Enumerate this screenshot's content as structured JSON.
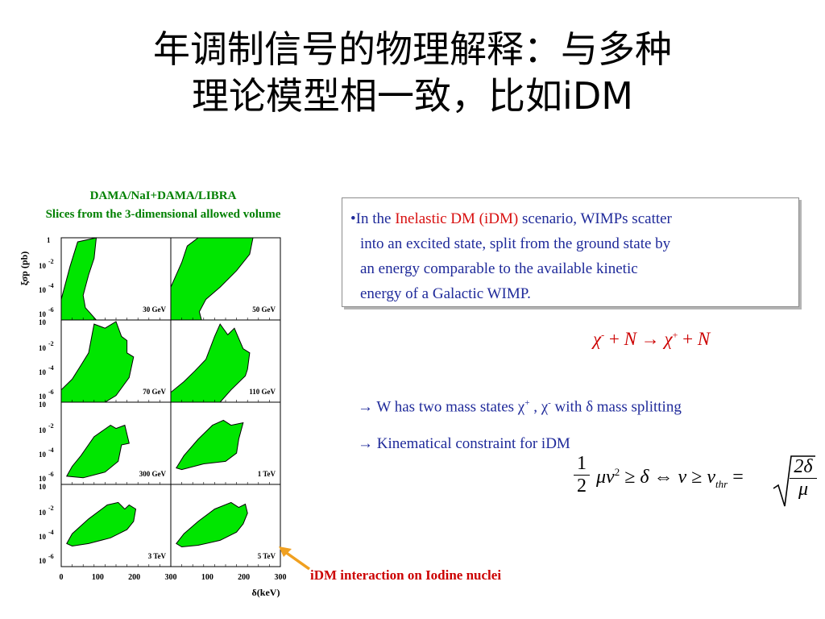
{
  "slide": {
    "title_line1": "年调制信号的物理解释：与多种",
    "title_line2": "理论模型相一致，比如iDM"
  },
  "figure": {
    "caption_line1": "DAMA/NaI+DAMA/LIBRA",
    "caption_line2": "Slices from the 3-dimensional allowed volume",
    "bottom_caption": "iDM interaction on Iodine nuclei",
    "region_color": "#00e600",
    "arrow_color": "#f0a020"
  },
  "chart_data": {
    "type": "area",
    "ylabel": "ξσp (pb)",
    "xlabel": "δ(keV)",
    "x_ticks": [
      "0",
      "100",
      "200",
      "300"
    ],
    "y_ticks": [
      "1",
      "-2",
      "-4",
      "-6"
    ],
    "y_tick_prefix": "10",
    "panels": [
      {
        "label": "30 GeV"
      },
      {
        "label": "50 GeV"
      },
      {
        "label": "70 GeV"
      },
      {
        "label": "110 GeV"
      },
      {
        "label": "300 GeV"
      },
      {
        "label": "1 TeV"
      },
      {
        "label": "3 TeV"
      },
      {
        "label": "5 TeV"
      }
    ]
  },
  "text_box": {
    "bullet": "•",
    "pre": "In the ",
    "highlight": "Inelastic DM (iDM)",
    "post": " scenario, WIMPs scatter",
    "line2": "into an excited state, split from the ground state by",
    "line3": "an energy comparable to the available kinetic",
    "line4": "energy of a Galactic WIMP."
  },
  "equation1": {
    "chi": "χ",
    "minus": "-",
    "plus_sign": "+",
    "N": "N",
    "arrow": "→"
  },
  "bullets": {
    "arrow": "→",
    "b1_pre": " W has two mass states χ",
    "b1_plus": "+",
    "b1_mid": " , χ",
    "b1_minus": "-",
    "b1_post": " with δ mass splitting",
    "b2": " Kinematical constraint for iDM"
  },
  "equation2": {
    "half_num": "1",
    "half_den": "2",
    "lhs": "μv",
    "sq": "2",
    "rel": " ≥ δ ⇔ v ≥ v",
    "thr": "thr",
    "eq": " =",
    "sqrt_num": "2δ",
    "sqrt_den": "μ"
  }
}
